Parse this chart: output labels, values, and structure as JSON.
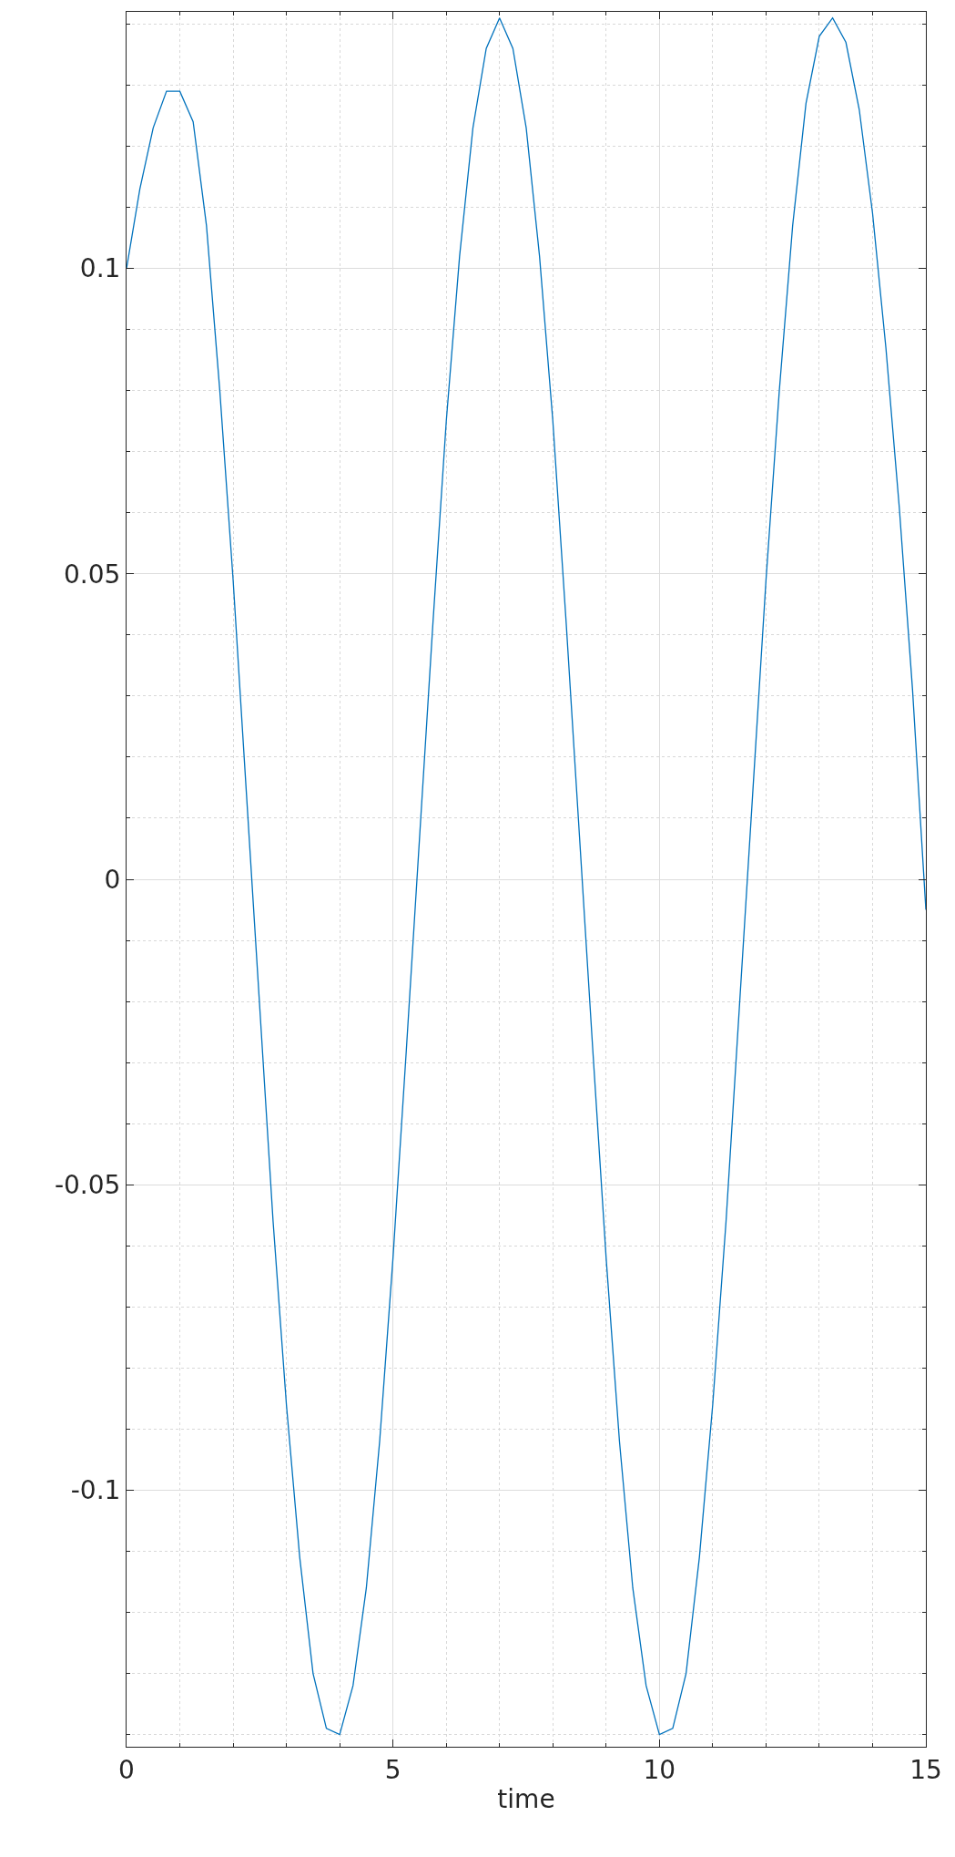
{
  "chart_data": {
    "type": "line",
    "xlabel": "time",
    "x": [
      0,
      0.25,
      0.5,
      0.75,
      1,
      1.25,
      1.5,
      1.75,
      2,
      2.25,
      2.5,
      2.75,
      3,
      3.25,
      3.5,
      3.75,
      4,
      4.25,
      4.5,
      4.75,
      5,
      5.25,
      5.5,
      5.75,
      6,
      6.25,
      6.5,
      6.75,
      7,
      7.25,
      7.5,
      7.75,
      8,
      8.25,
      8.5,
      8.75,
      9,
      9.25,
      9.5,
      9.75,
      10,
      10.25,
      10.5,
      10.75,
      11,
      11.25,
      11.5,
      11.75,
      12,
      12.25,
      12.5,
      12.75,
      13,
      13.25,
      13.5,
      13.75,
      14,
      14.25,
      14.5,
      14.75,
      15
    ],
    "series": [
      {
        "color": "#0072bd",
        "values": [
          0.1,
          0.113,
          0.123,
          0.129,
          0.129,
          0.124,
          0.107,
          0.08,
          0.049,
          0.014,
          -0.021,
          -0.056,
          -0.086,
          -0.111,
          -0.13,
          -0.139,
          -0.14,
          -0.132,
          -0.116,
          -0.092,
          -0.062,
          -0.028,
          0.007,
          0.042,
          0.075,
          0.102,
          0.123,
          0.136,
          0.141,
          0.136,
          0.123,
          0.102,
          0.075,
          0.042,
          0.007,
          -0.028,
          -0.062,
          -0.092,
          -0.116,
          -0.132,
          -0.14,
          -0.139,
          -0.13,
          -0.111,
          -0.086,
          -0.056,
          -0.021,
          0.014,
          0.049,
          0.08,
          0.107,
          0.127,
          0.138,
          0.141,
          0.137,
          0.126,
          0.109,
          0.087,
          0.061,
          0.031,
          -0.005
        ]
      }
    ],
    "xlim": [
      0,
      15
    ],
    "xticks": [
      0,
      5,
      10,
      15
    ],
    "ylim": [
      -0.142,
      0.142
    ],
    "yticks": [
      -0.1,
      -0.05,
      0,
      0.05,
      0.1
    ],
    "grid": true,
    "marker": "none",
    "line_style": "solid"
  }
}
